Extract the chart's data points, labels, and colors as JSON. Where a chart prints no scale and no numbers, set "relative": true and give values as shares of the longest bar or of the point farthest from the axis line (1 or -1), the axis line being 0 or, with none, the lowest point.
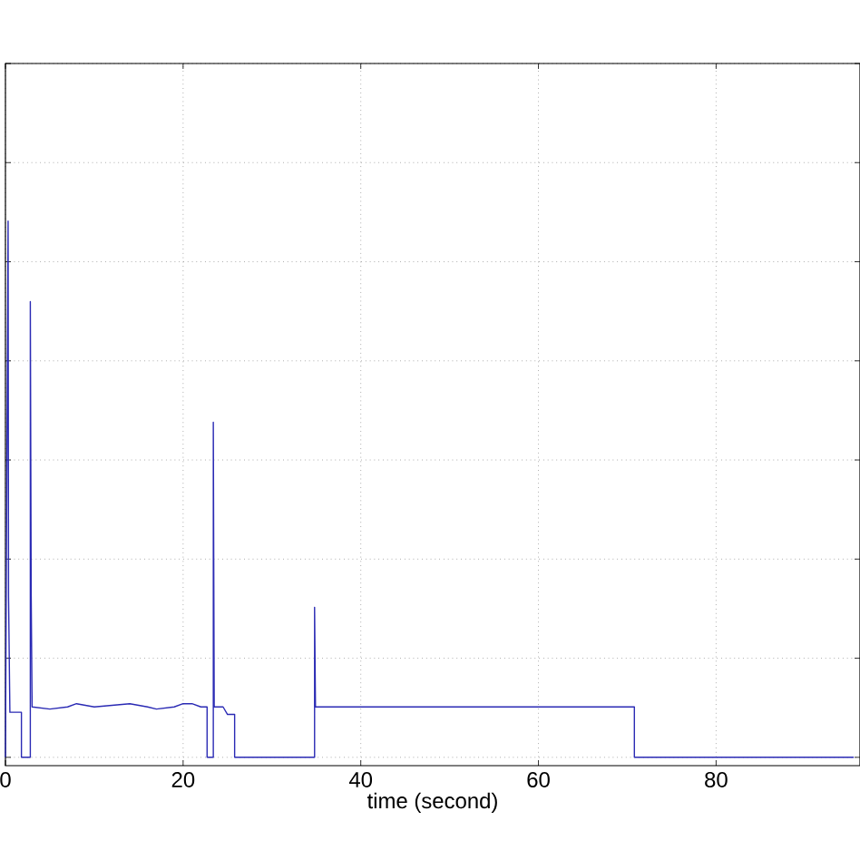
{
  "chart_data": {
    "type": "line",
    "xlabel": "time (second)",
    "relative": true,
    "xlim": [
      0,
      96.2
    ],
    "xticks": [
      0,
      20,
      40,
      60,
      80
    ],
    "grid": true,
    "tick_labels": "x",
    "series": [
      {
        "color": "#2a2ab4",
        "x": [
          0,
          0.3,
          0.35,
          0.5,
          1.0,
          1.6,
          1.8,
          1.8,
          2.8,
          2.8,
          2.9,
          3.0,
          5,
          7,
          8,
          10,
          12,
          14,
          16,
          17,
          19,
          20,
          21,
          22,
          22.7,
          22.7,
          23.4,
          23.4,
          23.5,
          24.5,
          25,
          25.8,
          25.8,
          34.8,
          34.8,
          34.9,
          40,
          50,
          60,
          66,
          70.8,
          70.8,
          95.5
        ],
        "values": [
          0,
          1.0,
          0.3,
          0.084,
          0.084,
          0.084,
          0.084,
          0,
          0,
          0.85,
          0.3,
          0.094,
          0.09,
          0.094,
          0.1,
          0.094,
          0.097,
          0.1,
          0.094,
          0.09,
          0.094,
          0.1,
          0.1,
          0.094,
          0.094,
          0,
          0,
          0.625,
          0.094,
          0.094,
          0.08,
          0.08,
          0,
          0,
          0.28,
          0.094,
          0.094,
          0.094,
          0.094,
          0.094,
          0.094,
          0,
          0
        ]
      }
    ]
  }
}
